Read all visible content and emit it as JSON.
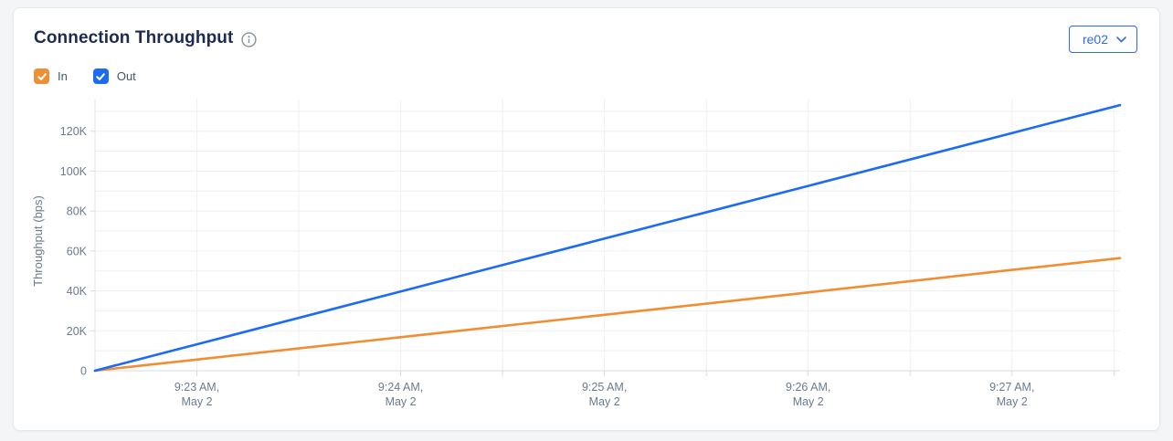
{
  "card": {
    "title": "Connection Throughput",
    "selector": {
      "value": "re02"
    }
  },
  "legend": {
    "items": [
      {
        "label": "In",
        "color": "#ef8e33",
        "checked": true
      },
      {
        "label": "Out",
        "color": "#1c6bf2",
        "checked": true
      }
    ]
  },
  "chart_data": {
    "type": "line",
    "title": "Connection Throughput",
    "xlabel": "",
    "ylabel": "Throughput (bps)",
    "grid": true,
    "legend_position": "top-left",
    "x_tick_labels": [
      [
        "9:23 AM,",
        "May 2"
      ],
      [
        "9:24 AM,",
        "May 2"
      ],
      [
        "9:25 AM,",
        "May 2"
      ],
      [
        "9:26 AM,",
        "May 2"
      ],
      [
        "9:27 AM,",
        "May 2"
      ]
    ],
    "x_tick_offsets_min": [
      0.5,
      1.5,
      2.5,
      3.5,
      4.5
    ],
    "x_minor_gridline_offsets_min": [
      1,
      2,
      3,
      4,
      5
    ],
    "x_domain_minutes": [
      0,
      5.03
    ],
    "y_tick_labels": [
      "0",
      "20K",
      "40K",
      "60K",
      "80K",
      "100K",
      "120K"
    ],
    "y_tick_values": [
      0,
      20000,
      40000,
      60000,
      80000,
      100000,
      120000
    ],
    "y_gridline_step": 10000,
    "y_gridline_max": 130000,
    "ylim": [
      0,
      133100
    ],
    "series": [
      {
        "name": "In",
        "color": "#ef8e33",
        "points": [
          {
            "t_min": 0,
            "bps": 0
          },
          {
            "t_min": 0.5,
            "bps": 5600
          },
          {
            "t_min": 1.5,
            "bps": 16800
          },
          {
            "t_min": 2.5,
            "bps": 28000
          },
          {
            "t_min": 3.5,
            "bps": 39200
          },
          {
            "t_min": 4.5,
            "bps": 50500
          },
          {
            "t_min": 5.03,
            "bps": 56400
          }
        ]
      },
      {
        "name": "Out",
        "color": "#1c6bf2",
        "points": [
          {
            "t_min": 0,
            "bps": 0
          },
          {
            "t_min": 0.5,
            "bps": 13200
          },
          {
            "t_min": 1.5,
            "bps": 39700
          },
          {
            "t_min": 2.5,
            "bps": 66200
          },
          {
            "t_min": 3.5,
            "bps": 92600
          },
          {
            "t_min": 4.5,
            "bps": 119100
          },
          {
            "t_min": 5.03,
            "bps": 133100
          }
        ]
      }
    ],
    "colors": {
      "gridline": "#edeff3",
      "axis": "#d7dbe2",
      "tick_text": "#6b7a90"
    }
  }
}
